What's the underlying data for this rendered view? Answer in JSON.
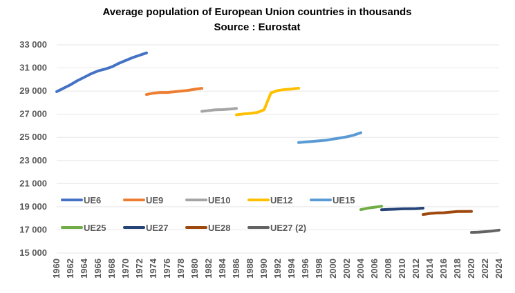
{
  "chart_data": {
    "type": "line",
    "title": "Average population of European Union countries in thousands",
    "subtitle": "Source : Eurostat",
    "xlabel": "",
    "ylabel": "",
    "xlim": [
      1960,
      2024
    ],
    "ylim": [
      15000,
      33000
    ],
    "y_ticks": [
      15000,
      17000,
      19000,
      21000,
      23000,
      25000,
      27000,
      29000,
      31000,
      33000
    ],
    "y_tick_labels": [
      "15 000",
      "17 000",
      "19 000",
      "21 000",
      "23 000",
      "25 000",
      "27 000",
      "29 000",
      "31 000",
      "33 000"
    ],
    "x_ticks": [
      1960,
      1962,
      1964,
      1966,
      1968,
      1970,
      1972,
      1974,
      1976,
      1978,
      1980,
      1982,
      1984,
      1986,
      1988,
      1990,
      1992,
      1994,
      1996,
      1998,
      2000,
      2002,
      2004,
      2006,
      2008,
      2010,
      2012,
      2014,
      2016,
      2018,
      2020,
      2022,
      2024
    ],
    "grid": "horizontal",
    "legend_position": "inside-bottom-left",
    "series": [
      {
        "name": "UE6",
        "color": "#4472c4",
        "x": [
          1960,
          1961,
          1962,
          1963,
          1964,
          1965,
          1966,
          1967,
          1968,
          1969,
          1970,
          1971,
          1972,
          1973
        ],
        "y": [
          28950,
          29250,
          29550,
          29900,
          30200,
          30500,
          30750,
          30900,
          31100,
          31400,
          31650,
          31900,
          32100,
          32300
        ]
      },
      {
        "name": "UE9",
        "color": "#ed7d31",
        "x": [
          1973,
          1974,
          1975,
          1976,
          1977,
          1978,
          1979,
          1980,
          1981
        ],
        "y": [
          28700,
          28820,
          28880,
          28880,
          28940,
          29000,
          29060,
          29160,
          29240
        ]
      },
      {
        "name": "UE10",
        "color": "#a5a5a5",
        "x": [
          1981,
          1982,
          1983,
          1984,
          1985,
          1986
        ],
        "y": [
          27250,
          27320,
          27380,
          27400,
          27440,
          27500
        ]
      },
      {
        "name": "UE12",
        "color": "#ffc000",
        "x": [
          1986,
          1987,
          1988,
          1989,
          1990,
          1991,
          1992,
          1993,
          1994,
          1995
        ],
        "y": [
          26950,
          27020,
          27070,
          27150,
          27380,
          28850,
          29050,
          29130,
          29180,
          29250
        ]
      },
      {
        "name": "UE15",
        "color": "#5b9bd5",
        "x": [
          1995,
          1996,
          1997,
          1998,
          1999,
          2000,
          2001,
          2002,
          2003,
          2004
        ],
        "y": [
          24550,
          24600,
          24650,
          24700,
          24750,
          24850,
          24950,
          25050,
          25200,
          25400
        ]
      },
      {
        "name": "UE25",
        "color": "#70ad47",
        "x": [
          2004,
          2005,
          2006,
          2007
        ],
        "y": [
          18750,
          18880,
          18960,
          19050
        ]
      },
      {
        "name": "UE27",
        "color": "#264478",
        "x": [
          2007,
          2008,
          2009,
          2010,
          2011,
          2012,
          2013
        ],
        "y": [
          18740,
          18770,
          18790,
          18820,
          18830,
          18840,
          18880
        ]
      },
      {
        "name": "UE28",
        "color": "#9e480e",
        "x": [
          2013,
          2014,
          2015,
          2016,
          2017,
          2018,
          2019,
          2020
        ],
        "y": [
          18330,
          18420,
          18460,
          18480,
          18540,
          18590,
          18590,
          18600
        ]
      },
      {
        "name": "UE27 (2)",
        "color": "#636363",
        "x": [
          2020,
          2021,
          2022,
          2023,
          2024
        ],
        "y": [
          16780,
          16800,
          16850,
          16900,
          16980
        ]
      }
    ]
  }
}
